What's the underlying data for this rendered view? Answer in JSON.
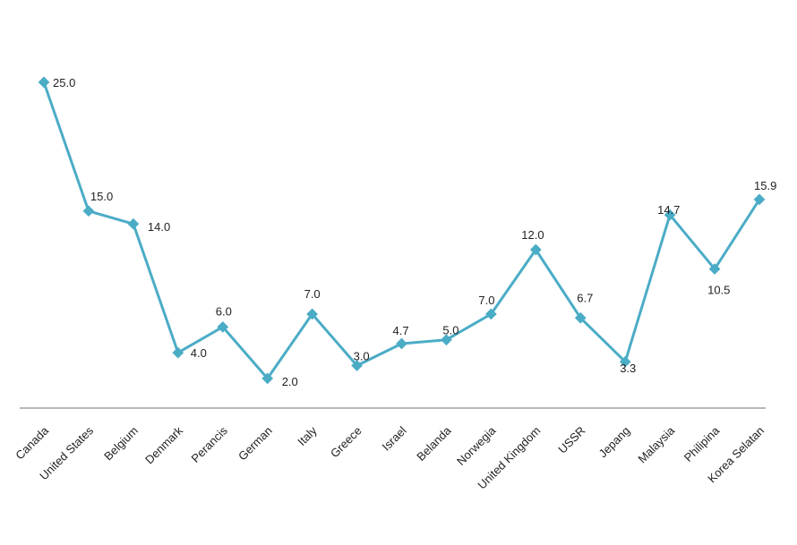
{
  "chart_data": {
    "type": "line",
    "title": "",
    "xlabel": "",
    "ylabel": "",
    "categories": [
      "Canada",
      "United States",
      "Belgium",
      "Denmark",
      "Perancis",
      "German",
      "Italy",
      "Greece",
      "Israel",
      "Belanda",
      "Norwegia",
      "United Kingdom",
      "USSR",
      "Jepang",
      "Malaysia",
      "Philipina",
      "Korea Selatan"
    ],
    "series": [
      {
        "values": [
          25.0,
          15.0,
          14.0,
          4.0,
          6.0,
          2.0,
          7.0,
          3.0,
          4.7,
          5.0,
          7.0,
          12.0,
          6.7,
          3.3,
          14.7,
          10.5,
          15.9
        ],
        "labels": [
          "25.0",
          "15.0",
          "14.0",
          "4.0",
          "6.0",
          "2.0",
          "7.0",
          "3.0",
          "4.7",
          "5.0",
          "7.0",
          "12.0",
          "6.7",
          "3.3",
          "14.7",
          "10.5",
          "15.9"
        ],
        "color": "#4bacc6"
      }
    ],
    "ylim": [
      -0.3,
      29.3
    ],
    "grid": false,
    "legend": "none",
    "axis_color": "#a0a0a0"
  }
}
